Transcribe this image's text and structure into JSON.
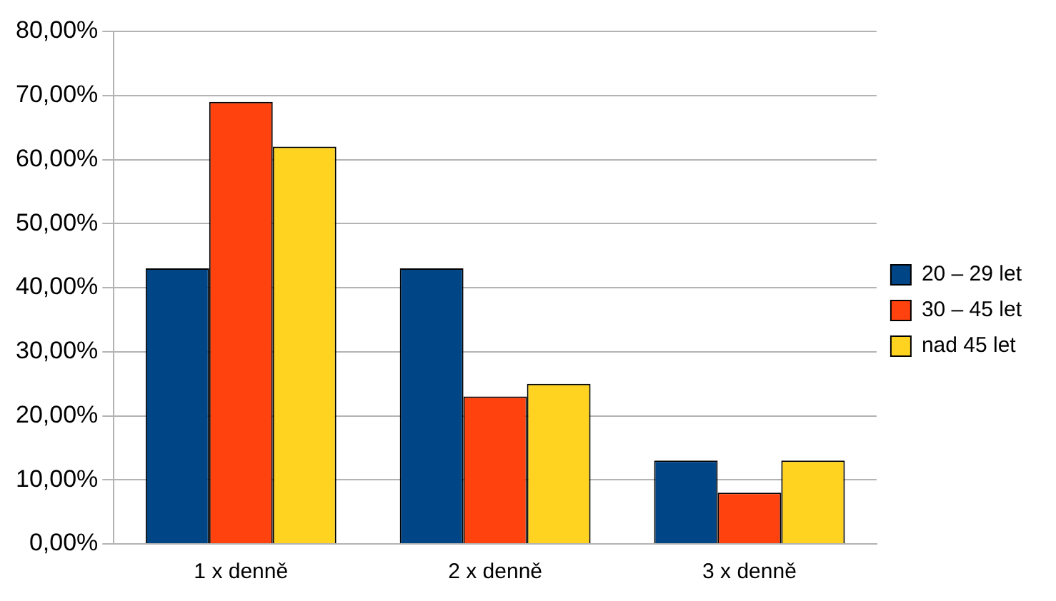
{
  "chart_data": {
    "type": "bar",
    "categories": [
      "1 x denně",
      "2 x denně",
      "3 x denně"
    ],
    "series": [
      {
        "name": "20 – 29 let",
        "color": "#004586",
        "values": [
          43,
          43,
          13
        ]
      },
      {
        "name": "30 – 45 let",
        "color": "#ff420e",
        "values": [
          69,
          23,
          8
        ]
      },
      {
        "name": "nad 45 let",
        "color": "#ffd320",
        "values": [
          62,
          25,
          13
        ]
      }
    ],
    "ylim": [
      0,
      80
    ],
    "yticks": [
      {
        "value": 0,
        "label": "0,00%"
      },
      {
        "value": 10,
        "label": "10,00%"
      },
      {
        "value": 20,
        "label": "20,00%"
      },
      {
        "value": 30,
        "label": "30,00%"
      },
      {
        "value": 40,
        "label": "40,00%"
      },
      {
        "value": 50,
        "label": "50,00%"
      },
      {
        "value": 60,
        "label": "60,00%"
      },
      {
        "value": 70,
        "label": "70,00%"
      },
      {
        "value": 80,
        "label": "80,00%"
      }
    ],
    "grid": "y",
    "legend": "right"
  }
}
